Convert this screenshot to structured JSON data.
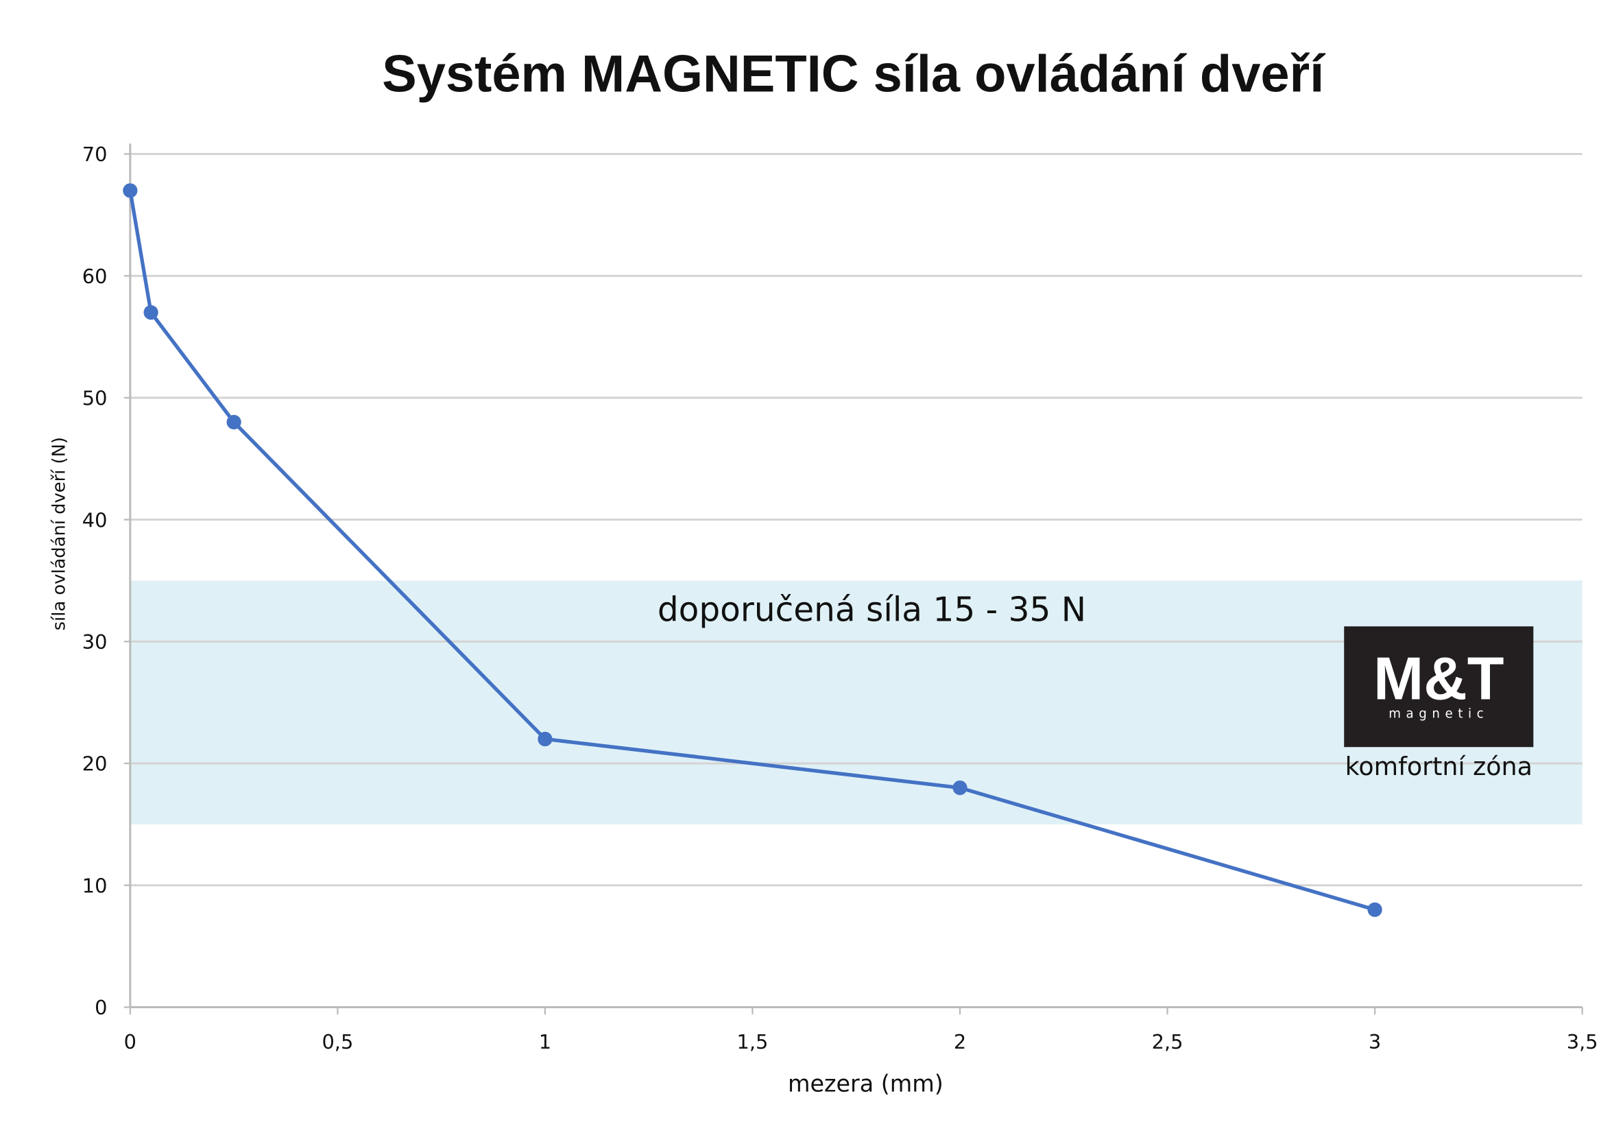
{
  "chart_data": {
    "type": "line",
    "title": "Systém MAGNETIC síla ovládání dveří",
    "x_label": "mezera (mm)",
    "y_label": "síla ovládání dveří (N)",
    "x": [
      0,
      0.05,
      0.25,
      1,
      2,
      3
    ],
    "series": [
      {
        "color": "#4472c4",
        "values": [
          67,
          57,
          48,
          22,
          18,
          8
        ]
      }
    ],
    "xlim": [
      0,
      3.5
    ],
    "ylim": [
      0,
      70
    ],
    "xticks": [
      0,
      {
        "value": 0.5,
        "label": "0,5"
      },
      1,
      {
        "value": 1.5,
        "label": "1,5"
      },
      2,
      {
        "value": 2.5,
        "label": "2,5"
      },
      3,
      {
        "value": 3.5,
        "label": "3,5"
      }
    ],
    "yticks": [
      0,
      10,
      20,
      30,
      40,
      50,
      60,
      70
    ],
    "grid": true,
    "band": {
      "from": 15,
      "to": 35,
      "color": "#dff1f7",
      "label": "doporučená síla 15 - 35 N"
    },
    "logo": {
      "name": "M&T",
      "subtitle": "magnetic",
      "caption": "komfortní zóna"
    }
  }
}
